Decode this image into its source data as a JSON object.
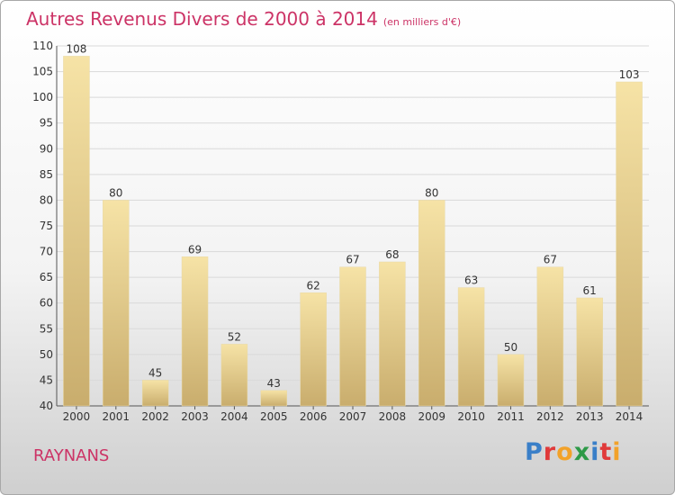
{
  "title": "Autres Revenus Divers de 2000 à 2014",
  "title_unit": "(en milliers d'€)",
  "location": "RAYNANS",
  "logo": {
    "text": "Proxiti",
    "letter_colors": [
      "#3a7fc8",
      "#e03a3a",
      "#f2a22a",
      "#2e9a48",
      "#3a7fc8",
      "#e03a3a",
      "#f2a22a"
    ]
  },
  "colors": {
    "title": "#cc3366",
    "bar_light": "#f6e3a6",
    "bar_dark": "#c9ad6d",
    "grid": "#d9d9d9"
  },
  "chart_data": {
    "type": "bar",
    "categories": [
      "2000",
      "2001",
      "2002",
      "2003",
      "2004",
      "2005",
      "2006",
      "2007",
      "2008",
      "2009",
      "2010",
      "2011",
      "2012",
      "2013",
      "2014"
    ],
    "values": [
      108,
      80,
      45,
      69,
      52,
      43,
      62,
      67,
      68,
      80,
      63,
      50,
      67,
      61,
      103
    ],
    "ylim": [
      40,
      110
    ],
    "yticks": [
      40,
      45,
      50,
      55,
      60,
      65,
      70,
      75,
      80,
      85,
      90,
      95,
      100,
      105,
      110
    ],
    "grid": true,
    "title": "Autres Revenus Divers de 2000 à 2014",
    "xlabel": "",
    "ylabel": ""
  }
}
